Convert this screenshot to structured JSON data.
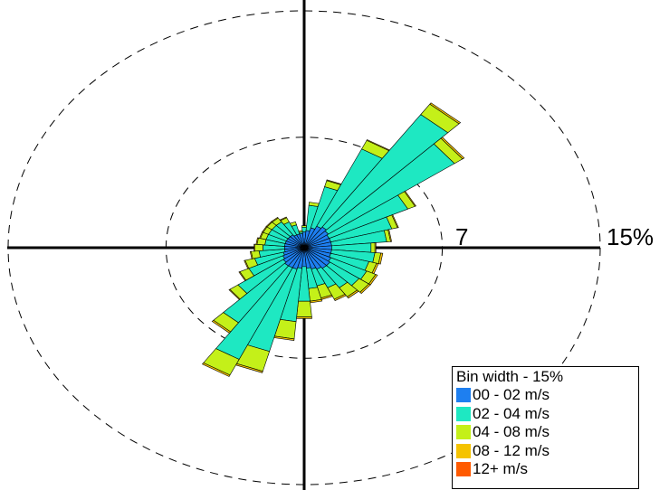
{
  "chart_data": {
    "type": "wind-rose",
    "ring_labels": [
      "7",
      "15%"
    ],
    "ring_values": [
      7,
      15
    ],
    "rmax": 15,
    "legend": {
      "title": "Bin width - 15%",
      "entries": [
        {
          "label": "00 - 02 m/s",
          "color": "#1e7ff0"
        },
        {
          "label": "02 - 04 m/s",
          "color": "#1ee8c2"
        },
        {
          "label": "04 - 08 m/s",
          "color": "#c4f019"
        },
        {
          "label": "08 - 12 m/s",
          "color": "#f5c300"
        },
        {
          "label": "12+ m/s",
          "color": "#ff5a00"
        }
      ]
    },
    "sector_width_deg": 10,
    "directions_deg": [
      0,
      10,
      20,
      30,
      40,
      50,
      60,
      70,
      80,
      90,
      100,
      110,
      120,
      130,
      140,
      150,
      160,
      170,
      180,
      190,
      200,
      210,
      220,
      230,
      240,
      250,
      260,
      270,
      280,
      290,
      300,
      310,
      320,
      330,
      340,
      350
    ],
    "series": [
      {
        "name": "00 - 02 m/s",
        "values": [
          1.0,
          1.1,
          1.3,
          1.5,
          1.6,
          1.5,
          1.4,
          1.4,
          1.4,
          1.4,
          1.4,
          1.4,
          1.5,
          1.6,
          1.6,
          1.5,
          1.4,
          1.3,
          1.2,
          1.3,
          1.4,
          1.4,
          1.4,
          1.3,
          1.2,
          1.1,
          1.0,
          1.0,
          1.0,
          1.0,
          1.0,
          1.0,
          1.0,
          0.9,
          0.9,
          0.9
        ]
      },
      {
        "name": "02 - 04 m/s",
        "values": [
          0.3,
          1.6,
          2.7,
          5.4,
          8.7,
          7.8,
          4.4,
          3.2,
          2.8,
          2.0,
          2.2,
          2.0,
          2.0,
          1.8,
          1.5,
          1.3,
          1.1,
          1.3,
          2.2,
          3.4,
          5.4,
          6.4,
          4.4,
          2.8,
          1.9,
          1.5,
          1.3,
          1.1,
          1.0,
          1.0,
          1.0,
          1.0,
          1.0,
          0.9,
          0.6,
          0.1
        ]
      },
      {
        "name": "04 - 08 m/s",
        "values": [
          0.1,
          0.2,
          0.4,
          0.6,
          0.8,
          0.5,
          0.4,
          0.3,
          0.2,
          0.2,
          0.3,
          0.4,
          0.5,
          0.6,
          0.7,
          0.8,
          0.8,
          0.8,
          1.0,
          1.1,
          1.3,
          1.1,
          0.7,
          0.5,
          0.5,
          0.5,
          0.4,
          0.4,
          0.4,
          0.3,
          0.3,
          0.3,
          0.3,
          0.3,
          0.2,
          0.1
        ]
      },
      {
        "name": "08 - 12 m/s",
        "values": [
          0.0,
          0.0,
          0.05,
          0.05,
          0.1,
          0.1,
          0.05,
          0.05,
          0.05,
          0.05,
          0.1,
          0.1,
          0.1,
          0.1,
          0.1,
          0.1,
          0.1,
          0.1,
          0.1,
          0.1,
          0.1,
          0.1,
          0.1,
          0.05,
          0.05,
          0.05,
          0.05,
          0.05,
          0.05,
          0.05,
          0.05,
          0.05,
          0.05,
          0.05,
          0.0,
          0.0
        ]
      },
      {
        "name": "12+ m/s",
        "values": [
          0,
          0,
          0,
          0,
          0,
          0,
          0,
          0,
          0,
          0,
          0,
          0,
          0,
          0,
          0,
          0,
          0,
          0,
          0,
          0,
          0,
          0,
          0,
          0,
          0,
          0,
          0,
          0,
          0,
          0,
          0,
          0,
          0,
          0,
          0,
          0
        ]
      }
    ]
  }
}
